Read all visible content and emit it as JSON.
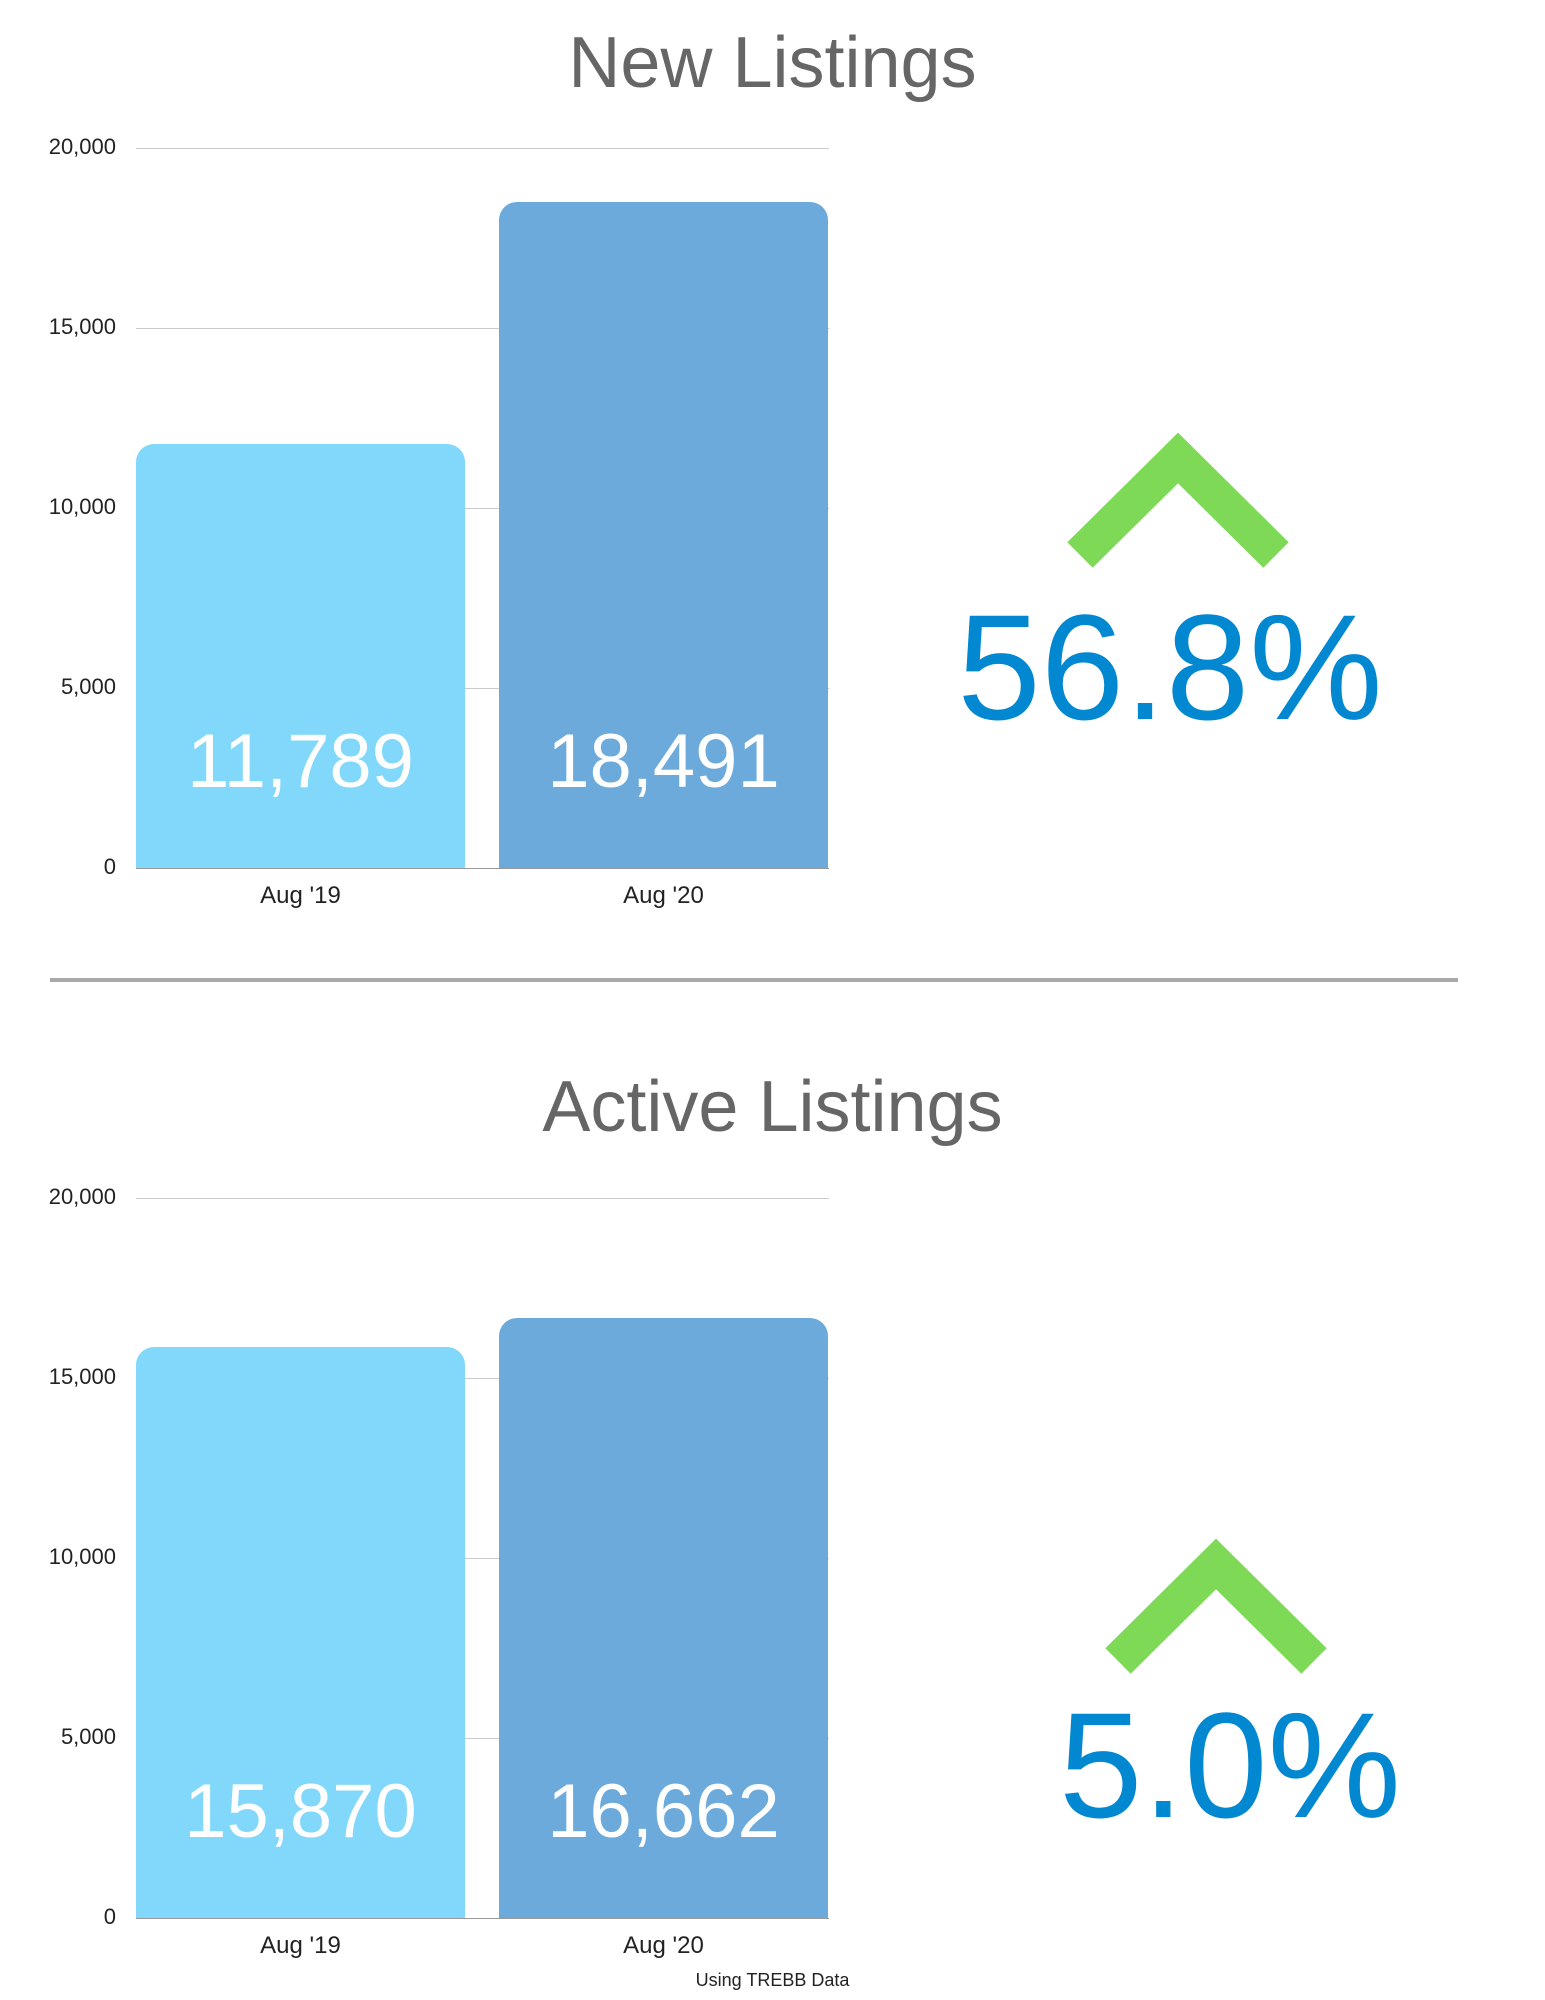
{
  "chart_data": [
    {
      "type": "bar",
      "title": "New Listings",
      "categories": [
        "Aug '19",
        "Aug '20"
      ],
      "values": [
        11789,
        18491
      ],
      "value_labels": [
        "11,789",
        "18,491"
      ],
      "ylim": [
        0,
        20000
      ],
      "yticks": [
        "0",
        "5,000",
        "10,000",
        "15,000",
        "20,000"
      ],
      "colors": [
        "#81d8fa",
        "#6caadb"
      ],
      "change": "56.8%",
      "change_direction": "up",
      "grid": true,
      "xlabel": "",
      "ylabel": ""
    },
    {
      "type": "bar",
      "title": "Active Listings",
      "categories": [
        "Aug '19",
        "Aug '20"
      ],
      "values": [
        15870,
        16662
      ],
      "value_labels": [
        "15,870",
        "16,662"
      ],
      "ylim": [
        0,
        20000
      ],
      "yticks": [
        "0",
        "5,000",
        "10,000",
        "15,000",
        "20,000"
      ],
      "colors": [
        "#81d8fa",
        "#6caadb"
      ],
      "change": "5.0%",
      "change_direction": "up",
      "grid": true,
      "xlabel": "",
      "ylabel": ""
    }
  ],
  "colors": {
    "accent_green": "#7ed957",
    "percent_blue": "#0288d1",
    "title_gray": "#666666",
    "divider_gray": "#a9a9a9"
  },
  "footer": "Using TREBB Data"
}
